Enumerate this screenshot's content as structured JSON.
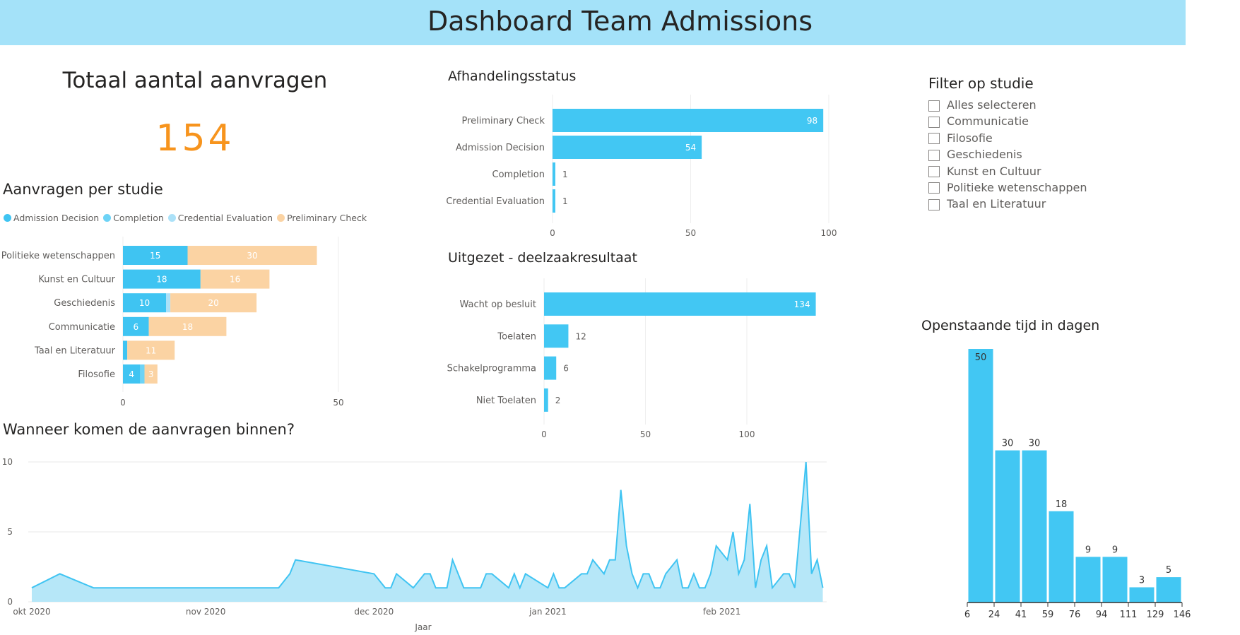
{
  "header": {
    "title": "Dashboard Team Admissions"
  },
  "kpi": {
    "title": "Totaal aantal aanvragen",
    "value": "154",
    "color": "#f7941d"
  },
  "colors": {
    "admission_decision": "#3fc4f2",
    "completion": "#6dd3f6",
    "credential_evaluation": "#abe1f8",
    "preliminary_check": "#fbd3a3",
    "bar": "#42c7f3",
    "area_fill": "#b6e7f8",
    "area_line": "#40c4f2"
  },
  "filter": {
    "title": "Filter op studie",
    "items": [
      "Alles selecteren",
      "Communicatie",
      "Filosofie",
      "Geschiedenis",
      "Kunst en Cultuur",
      "Politieke wetenschappen",
      "Taal en Literatuur"
    ]
  },
  "chart_data": [
    {
      "id": "per_studie",
      "type": "bar",
      "stacked": true,
      "orientation": "horizontal",
      "title": "Aanvragen per studie",
      "categories": [
        "Politieke wetenschappen",
        "Kunst en Cultuur",
        "Geschiedenis",
        "Communicatie",
        "Taal en Literatuur",
        "Filosofie"
      ],
      "series": [
        {
          "name": "Admission Decision",
          "values": [
            15,
            18,
            10,
            6,
            1,
            4
          ]
        },
        {
          "name": "Completion",
          "values": [
            0,
            0,
            0,
            0,
            0,
            1
          ]
        },
        {
          "name": "Credential Evaluation",
          "values": [
            0,
            0,
            1,
            0,
            0,
            0
          ]
        },
        {
          "name": "Preliminary Check",
          "values": [
            30,
            16,
            20,
            18,
            11,
            3
          ]
        }
      ],
      "xticks": [
        "0",
        "50"
      ],
      "xlim": [
        0,
        50
      ],
      "legend": "top",
      "grid": true
    },
    {
      "id": "afhandeling",
      "type": "bar",
      "orientation": "horizontal",
      "title": "Afhandelingsstatus",
      "categories": [
        "Preliminary Check",
        "Admission Decision",
        "Completion",
        "Credential Evaluation"
      ],
      "values": [
        98,
        54,
        1,
        1
      ],
      "xticks": [
        "0",
        "50",
        "100"
      ],
      "xlim": [
        0,
        100
      ]
    },
    {
      "id": "uitgezet",
      "type": "bar",
      "orientation": "horizontal",
      "title": "Uitgezet - deelzaakresultaat",
      "categories": [
        "Wacht op besluit",
        "Toelaten",
        "Schakelprogramma",
        "Niet Toelaten"
      ],
      "values": [
        134,
        12,
        6,
        2
      ],
      "xticks": [
        "0",
        "50",
        "100"
      ],
      "xlim": [
        0,
        134
      ]
    },
    {
      "id": "histogram",
      "type": "bar",
      "title": "Openstaande tijd in dagen",
      "bin_edges": [
        "6",
        "24",
        "41",
        "59",
        "76",
        "94",
        "111",
        "129",
        "146"
      ],
      "values": [
        50,
        30,
        30,
        18,
        9,
        9,
        3,
        5
      ]
    },
    {
      "id": "tijdlijn",
      "type": "area",
      "title": "Wanneer komen de aanvragen binnen?",
      "xlabel": "Jaar",
      "yticks": [
        "0",
        "5",
        "10"
      ],
      "ylim": [
        0,
        10
      ],
      "xticks": [
        "okt 2020",
        "nov 2020",
        "dec 2020",
        "jan 2021",
        "feb 2021"
      ],
      "grid": true,
      "x": [
        "2020-10-01",
        "2020-10-06",
        "2020-10-12",
        "2020-11-14",
        "2020-11-16",
        "2020-11-17",
        "2020-12-01",
        "2020-12-03",
        "2020-12-04",
        "2020-12-05",
        "2020-12-08",
        "2020-12-10",
        "2020-12-11",
        "2020-12-12",
        "2020-12-14",
        "2020-12-15",
        "2020-12-17",
        "2020-12-20",
        "2020-12-21",
        "2020-12-22",
        "2020-12-25",
        "2020-12-26",
        "2020-12-27",
        "2020-12-28",
        "2021-01-01",
        "2021-01-02",
        "2021-01-03",
        "2021-01-04",
        "2021-01-07",
        "2021-01-08",
        "2021-01-09",
        "2021-01-11",
        "2021-01-12",
        "2021-01-13",
        "2021-01-14",
        "2021-01-15",
        "2021-01-16",
        "2021-01-17",
        "2021-01-18",
        "2021-01-19",
        "2021-01-20",
        "2021-01-21",
        "2021-01-22",
        "2021-01-24",
        "2021-01-25",
        "2021-01-26",
        "2021-01-27",
        "2021-01-28",
        "2021-01-29",
        "2021-01-30",
        "2021-01-31",
        "2021-02-02",
        "2021-02-03",
        "2021-02-04",
        "2021-02-05",
        "2021-02-06",
        "2021-02-07",
        "2021-02-08",
        "2021-02-09",
        "2021-02-10",
        "2021-02-12",
        "2021-02-13",
        "2021-02-14",
        "2021-02-16",
        "2021-02-17",
        "2021-02-18",
        "2021-02-19"
      ],
      "y": [
        1,
        2,
        1,
        1,
        2,
        3,
        2,
        1,
        1,
        2,
        1,
        2,
        2,
        1,
        1,
        3,
        1,
        1,
        2,
        2,
        1,
        2,
        1,
        2,
        1,
        2,
        1,
        1,
        2,
        2,
        3,
        2,
        3,
        3,
        8,
        4,
        2,
        1,
        2,
        2,
        1,
        1,
        2,
        3,
        1,
        1,
        2,
        1,
        1,
        2,
        4,
        3,
        5,
        2,
        3,
        7,
        1,
        3,
        4,
        1,
        2,
        2,
        1,
        10,
        2,
        3,
        1
      ]
    }
  ]
}
